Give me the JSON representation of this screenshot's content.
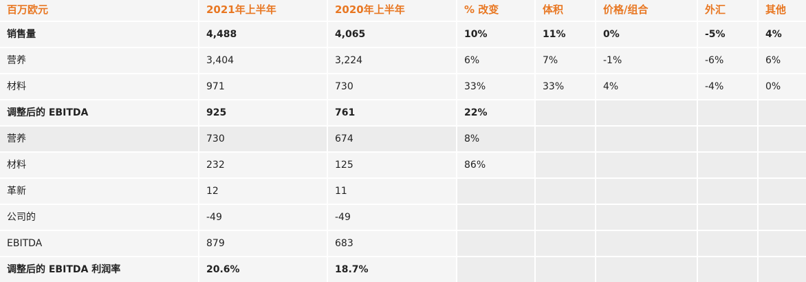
{
  "table": {
    "header": [
      "百万欧元",
      "2021年上半年",
      "2020年上半年",
      "% 改变",
      "体积",
      "价格/组合",
      "外汇",
      "其他"
    ],
    "rows": [
      [
        "销售量",
        "4,488",
        "4,065",
        "10%",
        "11%",
        "0%",
        "-5%",
        "4%"
      ],
      [
        "营养",
        "3,404",
        "3,224",
        "6%",
        "7%",
        "-1%",
        "-6%",
        "6%"
      ],
      [
        "材料",
        "971",
        "730",
        "33%",
        "33%",
        "4%",
        "-4%",
        "0%"
      ],
      [
        "调整后的 EBITDA",
        "925",
        "761",
        "22%",
        null,
        null,
        null,
        null
      ],
      [
        "营养",
        "730",
        "674",
        "8%",
        null,
        null,
        null,
        null
      ],
      [
        "材料",
        "232",
        "125",
        "86%",
        null,
        null,
        null,
        null
      ],
      [
        "革新",
        "12",
        "11",
        null,
        null,
        null,
        null,
        null
      ],
      [
        "公司的",
        "-49",
        "-49",
        null,
        null,
        null,
        null,
        null
      ],
      [
        "EBITDA",
        "879",
        "683",
        null,
        null,
        null,
        null,
        null
      ],
      [
        "调整后的 EBITDA 利润率",
        "20.6%",
        "18.7%",
        null,
        null,
        null,
        null,
        null
      ]
    ],
    "bold_rows": [
      0,
      3,
      9
    ],
    "shaded_rows": [
      4
    ]
  }
}
